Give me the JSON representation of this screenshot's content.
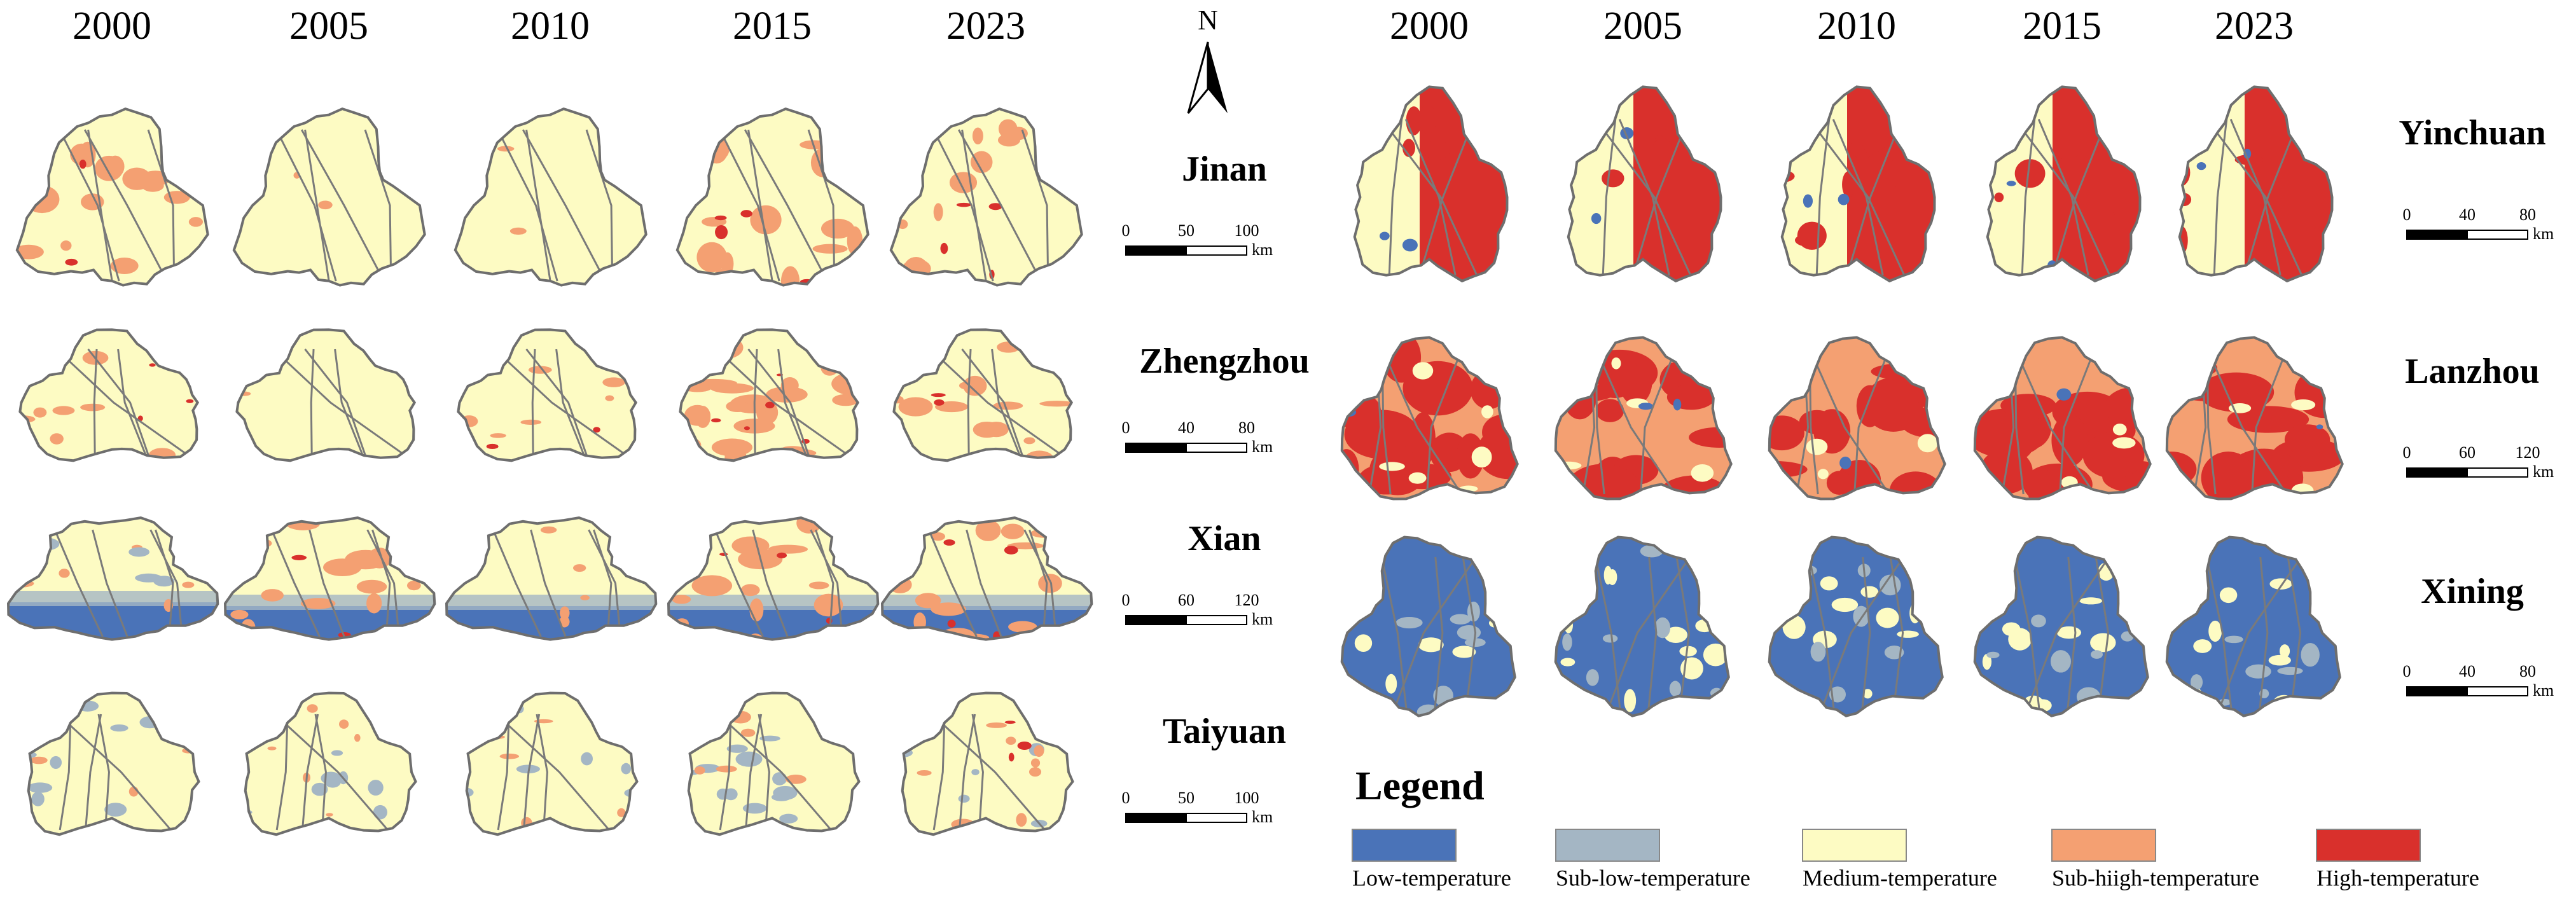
{
  "left_panel": {
    "years": [
      "2000",
      "2005",
      "2010",
      "2015",
      "2023"
    ],
    "cities": [
      {
        "name": "Jinan",
        "scale": {
          "ticks": [
            "0",
            "50",
            "100"
          ],
          "unit": "km"
        }
      },
      {
        "name": "Zhengzhou",
        "scale": {
          "ticks": [
            "0",
            "40",
            "80"
          ],
          "unit": "km"
        }
      },
      {
        "name": "Xian",
        "scale": {
          "ticks": [
            "0",
            "60",
            "120"
          ],
          "unit": "km"
        }
      },
      {
        "name": "Taiyuan",
        "scale": {
          "ticks": [
            "0",
            "50",
            "100"
          ],
          "unit": "km"
        }
      }
    ]
  },
  "north_arrow": "N",
  "right_panel": {
    "years": [
      "2000",
      "2005",
      "2010",
      "2015",
      "2023"
    ],
    "cities": [
      {
        "name": "Yinchuan",
        "scale": {
          "ticks": [
            "0",
            "40",
            "80"
          ],
          "unit": "km"
        }
      },
      {
        "name": "Lanzhou",
        "scale": {
          "ticks": [
            "0",
            "60",
            "120"
          ],
          "unit": "km"
        }
      },
      {
        "name": "Xining",
        "scale": {
          "ticks": [
            "0",
            "40",
            "80"
          ],
          "unit": "km"
        }
      }
    ]
  },
  "legend": {
    "title": "Legend",
    "items": [
      {
        "label": "Low-temperature",
        "color": "#4a73b8"
      },
      {
        "label": "Sub-low-temperature",
        "color": "#a4b6c4"
      },
      {
        "label": "Medium-temperature",
        "color": "#fdfbc3"
      },
      {
        "label": "Sub-hiigh-temperature",
        "color": "#f4a072"
      },
      {
        "label": "High-temperature",
        "color": "#d9302c"
      }
    ]
  }
}
